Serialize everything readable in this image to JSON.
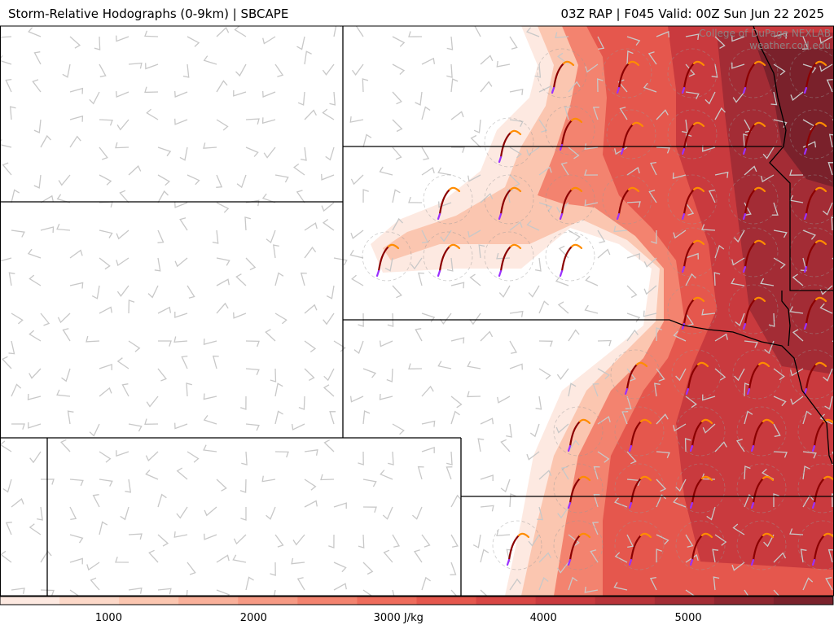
{
  "title_left": "Storm-Relative Hodographs (0-9km) | SBCAPE",
  "title_right": "03Z RAP | F045 Valid: 00Z Sun Jun 22 2025",
  "credit": {
    "line1": "College of DuPage NEXLAB",
    "line2": "weather.cod.edu"
  },
  "colorbar": {
    "min": 250,
    "max": 6000,
    "ticks": [
      {
        "value": 1000,
        "label": "1000"
      },
      {
        "value": 2000,
        "label": "2000"
      },
      {
        "value": 3000,
        "label": "3000 J/kg"
      },
      {
        "value": 4000,
        "label": "4000"
      },
      {
        "value": 5000,
        "label": "5000"
      }
    ],
    "colors": [
      "#fde9e1",
      "#fcd8c8",
      "#fbc6b0",
      "#f9b09a",
      "#f69a84",
      "#f3836f",
      "#ee6c5c",
      "#e5574d",
      "#d84644",
      "#c93a3e",
      "#b83339",
      "#a32c35",
      "#8e2630",
      "#7a212b"
    ]
  },
  "colors": {
    "border": "#000000",
    "barb": "#c8c8c8",
    "hodo_low": "#8b0000",
    "hodo_mid": "#ff8c00",
    "hodo_high": "#9b30ff"
  }
}
